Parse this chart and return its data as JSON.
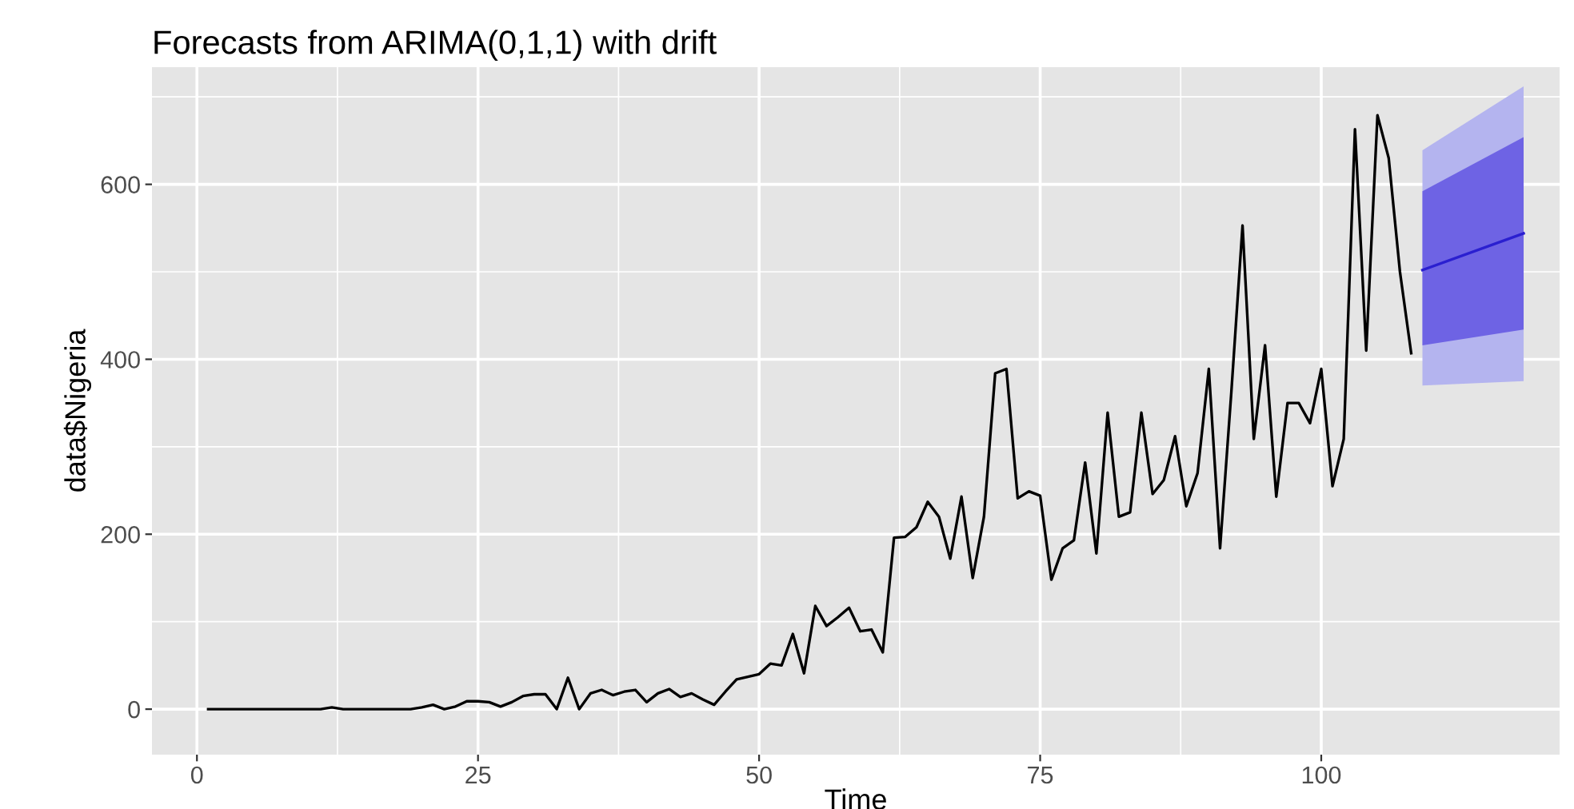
{
  "chart_data": {
    "type": "line",
    "title": "Forecasts from ARIMA(0,1,1) with drift",
    "xlabel": "Time",
    "ylabel": "data$Nigeria",
    "xlim": [
      -4,
      121.2
    ],
    "ylim": [
      -52,
      734
    ],
    "xticks": [
      0,
      25,
      50,
      75,
      100
    ],
    "yticks": [
      0,
      200,
      400,
      600
    ],
    "grid": true,
    "series": [
      {
        "color": "#000000",
        "x": [
          1,
          2,
          3,
          4,
          5,
          6,
          7,
          8,
          9,
          10,
          11,
          12,
          13,
          14,
          15,
          16,
          17,
          18,
          19,
          20,
          21,
          22,
          23,
          24,
          25,
          26,
          27,
          28,
          29,
          30,
          31,
          32,
          33,
          34,
          35,
          36,
          37,
          38,
          39,
          40,
          41,
          42,
          43,
          44,
          45,
          46,
          47,
          48,
          49,
          50,
          51,
          52,
          53,
          54,
          55,
          56,
          57,
          58,
          59,
          60,
          61,
          62,
          63,
          64,
          65,
          66,
          67,
          68,
          69,
          70,
          71,
          72,
          73,
          74,
          75,
          76,
          77,
          78,
          79,
          80,
          81,
          82,
          83,
          84,
          85,
          86,
          87,
          88,
          89,
          90,
          91,
          92,
          93,
          94,
          95,
          96,
          97,
          98,
          99,
          100,
          101,
          102,
          103,
          104,
          105,
          106,
          107,
          108
        ],
        "values": [
          0,
          0,
          0,
          0,
          0,
          0,
          0,
          0,
          0,
          0,
          0,
          2,
          0,
          0,
          0,
          0,
          0,
          0,
          0,
          2,
          5,
          0,
          3,
          9,
          9,
          8,
          3,
          8,
          15,
          17,
          17,
          0,
          36,
          0,
          18,
          22,
          16,
          20,
          22,
          8,
          18,
          23,
          14,
          18,
          11,
          5,
          20,
          34,
          37,
          40,
          52,
          50,
          86,
          41,
          118,
          95,
          105,
          116,
          89,
          91,
          65,
          196,
          197,
          208,
          237,
          220,
          172,
          243,
          150,
          220,
          384,
          389,
          241,
          249,
          244,
          148,
          184,
          193,
          282,
          178,
          339,
          220,
          225,
          339,
          246,
          262,
          312,
          232,
          270,
          389,
          184,
          362,
          553,
          309,
          416,
          243,
          350,
          350,
          327,
          389,
          255,
          309,
          663,
          410,
          679,
          630,
          500,
          407
        ]
      },
      {
        "color": "#b4b4ef",
        "x": [
          109,
          118
        ],
        "values": [
          null,
          null
        ],
        "lower": [
          370,
          375
        ],
        "upper": [
          639,
          712
        ]
      },
      {
        "color": "#6e63e4",
        "x": [
          109,
          118
        ],
        "values": [
          null,
          null
        ],
        "lower": [
          416,
          434
        ],
        "upper": [
          592,
          654
        ]
      },
      {
        "color": "#2a1fd0",
        "x": [
          109,
          118
        ],
        "values": [
          502,
          544
        ]
      }
    ]
  }
}
